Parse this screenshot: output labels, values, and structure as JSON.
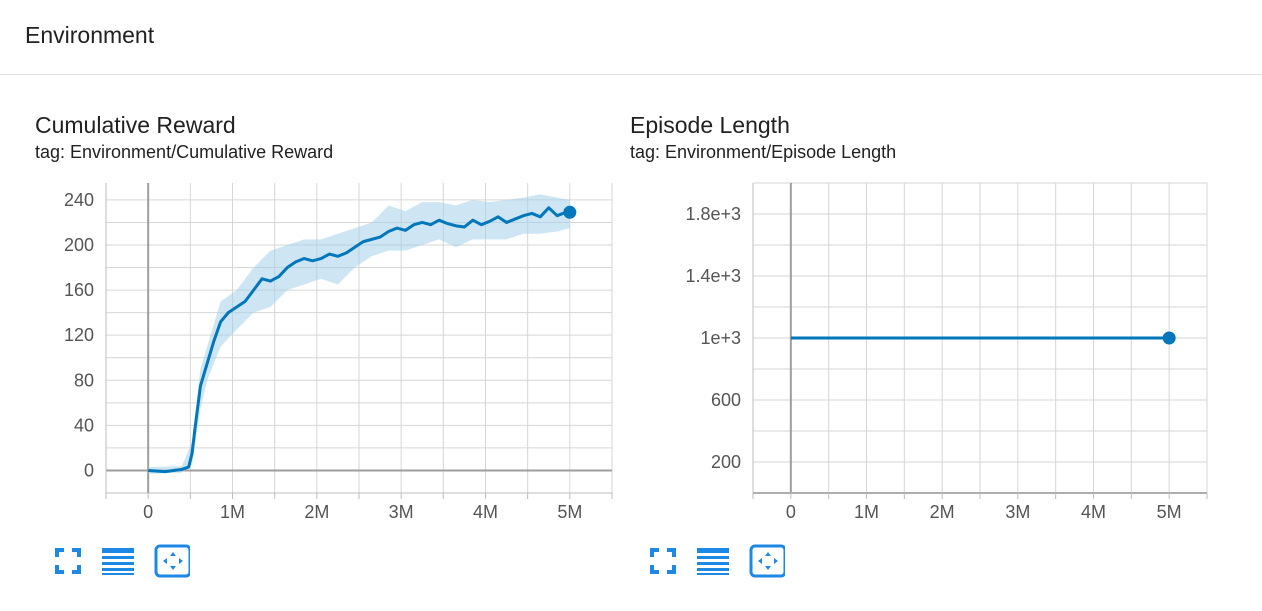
{
  "section": {
    "title": "Environment"
  },
  "colors": {
    "line": "#0077bb",
    "band": "#a6d2ea",
    "grid": "#d6d6d6",
    "axis": "#9e9e9e",
    "icon": "#1e88e5"
  },
  "icons": [
    "fullscreen-icon",
    "data-table-icon",
    "fit-domain-icon"
  ],
  "chart_data": [
    {
      "type": "line",
      "title": "Cumulative Reward",
      "subtitle": "tag: Environment/Cumulative Reward",
      "xlim": [
        -500000,
        5500000
      ],
      "ylim": [
        -20,
        255
      ],
      "x_ticks": [
        0,
        1000000,
        2000000,
        3000000,
        4000000,
        5000000
      ],
      "x_tick_labels": [
        "0",
        "1M",
        "2M",
        "3M",
        "4M",
        "5M"
      ],
      "y_ticks": [
        0,
        40,
        80,
        120,
        160,
        200,
        240
      ],
      "y_tick_labels": [
        "0",
        "40",
        "80",
        "120",
        "160",
        "200",
        "240"
      ],
      "grid": true,
      "series": [
        {
          "smoothed": [
            [
              0,
              0
            ],
            [
              200000,
              -1
            ],
            [
              400000,
              1
            ],
            [
              480000,
              3
            ],
            [
              520000,
              15
            ],
            [
              560000,
              40
            ],
            [
              620000,
              75
            ],
            [
              700000,
              95
            ],
            [
              780000,
              115
            ],
            [
              860000,
              132
            ],
            [
              950000,
              140
            ],
            [
              1050000,
              145
            ],
            [
              1150000,
              150
            ],
            [
              1250000,
              160
            ],
            [
              1350000,
              170
            ],
            [
              1450000,
              168
            ],
            [
              1550000,
              172
            ],
            [
              1650000,
              180
            ],
            [
              1750000,
              185
            ],
            [
              1850000,
              188
            ],
            [
              1950000,
              186
            ],
            [
              2050000,
              188
            ],
            [
              2150000,
              192
            ],
            [
              2250000,
              190
            ],
            [
              2350000,
              193
            ],
            [
              2450000,
              198
            ],
            [
              2550000,
              203
            ],
            [
              2650000,
              205
            ],
            [
              2750000,
              207
            ],
            [
              2850000,
              212
            ],
            [
              2950000,
              215
            ],
            [
              3050000,
              213
            ],
            [
              3150000,
              218
            ],
            [
              3250000,
              220
            ],
            [
              3350000,
              218
            ],
            [
              3450000,
              222
            ],
            [
              3550000,
              219
            ],
            [
              3650000,
              217
            ],
            [
              3750000,
              216
            ],
            [
              3850000,
              222
            ],
            [
              3950000,
              218
            ],
            [
              4050000,
              221
            ],
            [
              4150000,
              225
            ],
            [
              4250000,
              220
            ],
            [
              4350000,
              223
            ],
            [
              4450000,
              226
            ],
            [
              4550000,
              228
            ],
            [
              4650000,
              225
            ],
            [
              4750000,
              233
            ],
            [
              4850000,
              226
            ],
            [
              4950000,
              229
            ],
            [
              5000000,
              229
            ]
          ],
          "raw_band": [
            [
              0,
              -3,
              3
            ],
            [
              400000,
              -2,
              4
            ],
            [
              520000,
              5,
              25
            ],
            [
              620000,
              55,
              90
            ],
            [
              700000,
              80,
              110
            ],
            [
              860000,
              110,
              150
            ],
            [
              1050000,
              125,
              160
            ],
            [
              1250000,
              140,
              180
            ],
            [
              1450000,
              145,
              195
            ],
            [
              1650000,
              160,
              200
            ],
            [
              1850000,
              165,
              205
            ],
            [
              2050000,
              170,
              205
            ],
            [
              2250000,
              165,
              210
            ],
            [
              2450000,
              180,
              215
            ],
            [
              2650000,
              190,
              220
            ],
            [
              2850000,
              195,
              235
            ],
            [
              3050000,
              195,
              230
            ],
            [
              3250000,
              200,
              238
            ],
            [
              3450000,
              205,
              238
            ],
            [
              3650000,
              198,
              235
            ],
            [
              3850000,
              205,
              240
            ],
            [
              4050000,
              205,
              238
            ],
            [
              4250000,
              205,
              240
            ],
            [
              4450000,
              210,
              242
            ],
            [
              4650000,
              210,
              245
            ],
            [
              4850000,
              212,
              242
            ],
            [
              5000000,
              215,
              240
            ]
          ]
        }
      ]
    },
    {
      "type": "line",
      "title": "Episode Length",
      "subtitle": "tag: Environment/Episode Length",
      "xlim": [
        -500000,
        5500000
      ],
      "ylim": [
        0,
        2000
      ],
      "x_ticks": [
        0,
        1000000,
        2000000,
        3000000,
        4000000,
        5000000
      ],
      "x_tick_labels": [
        "0",
        "1M",
        "2M",
        "3M",
        "4M",
        "5M"
      ],
      "y_ticks": [
        200,
        600,
        1000,
        1400,
        1800
      ],
      "y_tick_labels": [
        "200",
        "600",
        "1e+3",
        "1.4e+3",
        "1.8e+3"
      ],
      "grid": true,
      "series": [
        {
          "smoothed": [
            [
              0,
              1000
            ],
            [
              5000000,
              1000
            ]
          ]
        }
      ]
    }
  ]
}
